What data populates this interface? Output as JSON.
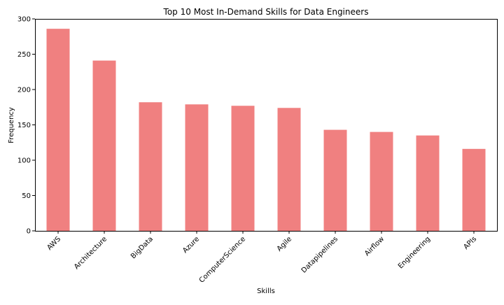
{
  "colors": {
    "bar": "#f08080",
    "axis": "#000000",
    "background": "#ffffff"
  },
  "chart_data": {
    "type": "bar",
    "title": "Top 10 Most In-Demand Skills for Data Engineers",
    "xlabel": "Skills",
    "ylabel": "Frequency",
    "ylim": [
      0,
      300
    ],
    "yticks": [
      0,
      50,
      100,
      150,
      200,
      250,
      300
    ],
    "grid": false,
    "categories": [
      "AWS",
      "Architecture",
      "BigData",
      "Azure",
      "ComputerScience",
      "Agile",
      "Datapipelines",
      "Airflow",
      "Engineering",
      "APIs"
    ],
    "values": [
      286,
      241,
      182,
      179,
      177,
      174,
      143,
      140,
      135,
      116
    ]
  }
}
